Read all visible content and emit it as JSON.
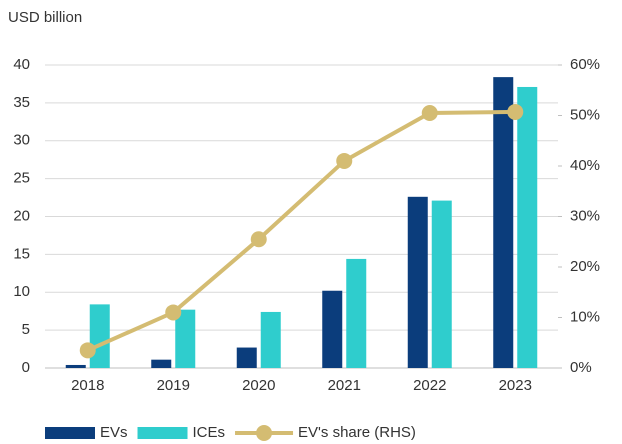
{
  "chart_data": {
    "type": "bar",
    "title": "USD billion",
    "categories": [
      "2018",
      "2019",
      "2020",
      "2021",
      "2022",
      "2023"
    ],
    "series": [
      {
        "name": "EVs",
        "color": "#0b3d7c",
        "values": [
          0.4,
          1.1,
          2.7,
          10.2,
          22.6,
          38.4
        ]
      },
      {
        "name": "ICEs",
        "color": "#2fcdcd",
        "values": [
          8.4,
          7.7,
          7.4,
          14.4,
          22.1,
          37.1
        ]
      },
      {
        "name": "EV's share (RHS)",
        "color": "#d4bc72",
        "axis": "y2",
        "values": [
          3.5,
          11,
          25.5,
          41,
          50.5,
          50.7
        ]
      }
    ],
    "ylim": [
      0,
      40
    ],
    "yticks": [
      0,
      5,
      10,
      15,
      20,
      25,
      30,
      35,
      40
    ],
    "y2lim": [
      0,
      60
    ],
    "y2ticks": [
      {
        "value": 0,
        "label": "0%"
      },
      {
        "value": 10,
        "label": "10%"
      },
      {
        "value": 20,
        "label": "20%"
      },
      {
        "value": 30,
        "label": "30%"
      },
      {
        "value": 40,
        "label": "40%"
      },
      {
        "value": 50,
        "label": "50%"
      },
      {
        "value": 60,
        "label": "60%"
      }
    ],
    "grid": true
  }
}
